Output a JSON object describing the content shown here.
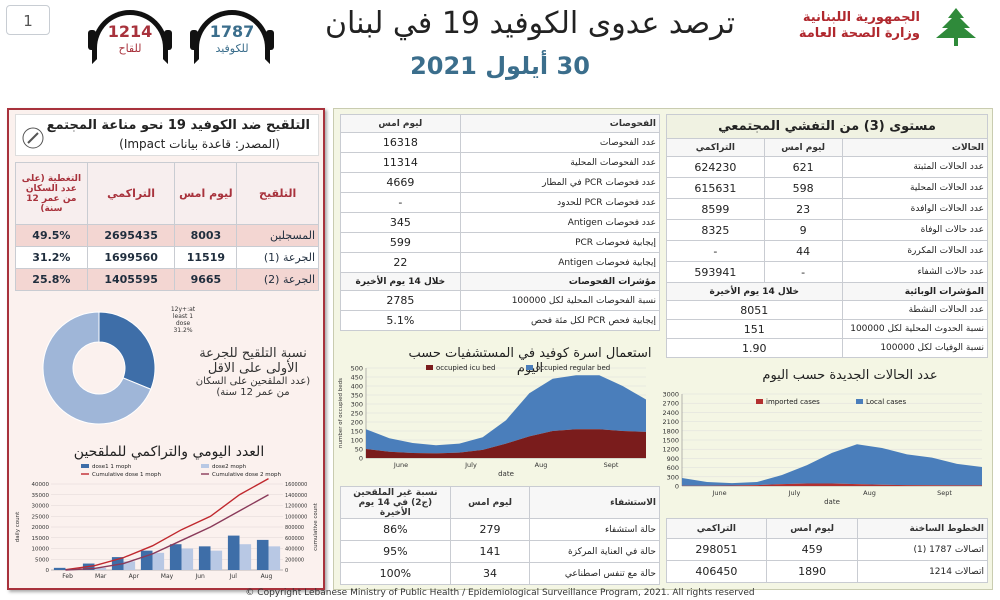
{
  "header": {
    "page_number": "1",
    "title": "ترصد عدوى الكوفيد 19 في لبنان",
    "date": "30 أيلول 2021",
    "ministry_line1": "الجمهورية اللبنانية",
    "ministry_line2": "وزارة الصحة العامة",
    "hotline_covid": {
      "number": "1787",
      "label": "للكوفيد"
    },
    "hotline_vaccine": {
      "number": "1214",
      "label": "للقاح"
    }
  },
  "vaccination": {
    "title": "التلقيح ضد الكوفيد 19 نحو مناعة المجتمع",
    "source": "(المصدر: قاعدة بيانات Impact)",
    "columns": [
      "التلقيح",
      "ليوم امس",
      "التراكمي",
      "التغطية (على عدد السكان من عمر 12 سنة)"
    ],
    "rows": [
      {
        "label": "المسجلين",
        "yesterday": "8003",
        "cumulative": "2695435",
        "coverage": "49.5%"
      },
      {
        "label": "الجرعة (1)",
        "yesterday": "11519",
        "cumulative": "1699560",
        "coverage": "31.2%"
      },
      {
        "label": "الجرعة (2)",
        "yesterday": "9665",
        "cumulative": "1405595",
        "coverage": "25.8%"
      }
    ],
    "donut_caption_line1": "نسبة التلقيح للجرعة",
    "donut_caption_line2": "الأولى على الاقل",
    "donut_caption_line3": "(عدد الملقحين على السكان",
    "donut_caption_line4": "من عمر 12 سنة)",
    "donut_label_line1": "12y+:at",
    "donut_label_line2": "least 1",
    "donut_label_line3": "dose",
    "donut_label_line4": "31.2%"
  },
  "community": {
    "title": "مستوى (3) من التفشي المجتمعي",
    "columns": [
      "الحالات",
      "ليوم امس",
      "التراكمي"
    ],
    "rows": [
      {
        "label": "عدد الحالات المثبتة",
        "yesterday": "621",
        "cumulative": "624230"
      },
      {
        "label": "عدد الحالات المحلية",
        "yesterday": "598",
        "cumulative": "615631"
      },
      {
        "label": "عدد الحالات الوافدة",
        "yesterday": "23",
        "cumulative": "8599"
      },
      {
        "label": "عدد حالات الوفاة",
        "yesterday": "9",
        "cumulative": "8325"
      },
      {
        "label": "عدد الحالات المكررة",
        "yesterday": "44",
        "cumulative": "-"
      },
      {
        "label": "عدد حالات الشفاء",
        "yesterday": "-",
        "cumulative": "593941"
      }
    ],
    "indicators_label": "المؤشرات الوبائية",
    "indicators_period": "خلال 14 يوم الأخيرة",
    "indicators": [
      {
        "label": "عدد الحالات النشطة",
        "value": "8051"
      },
      {
        "label": "نسبة الحدوث المحلية لكل 100000",
        "value": "151"
      },
      {
        "label": "نسبة الوفيات لكل 100000",
        "value": "1.90"
      }
    ]
  },
  "tests": {
    "columns": [
      "الفحوصات",
      "ليوم امس"
    ],
    "rows": [
      {
        "label": "عدد الفحوصات",
        "value": "16318"
      },
      {
        "label": "عدد الفحوصات المحلية",
        "value": "11314"
      },
      {
        "label": "عدد فحوصات PCR في المطار",
        "value": "4669"
      },
      {
        "label": "عدد فحوصات PCR للحدود",
        "value": "-"
      },
      {
        "label": "عدد فحوصات Antigen",
        "value": "345"
      },
      {
        "label": "إيجابية فحوصات PCR",
        "value": "599"
      },
      {
        "label": "إيجابية فحوصات Antigen",
        "value": "22"
      }
    ],
    "indicators_label": "مؤشرات الفحوصات",
    "indicators_period": "خلال 14 يوم الأخيرة",
    "indicators": [
      {
        "label": "نسبة الفحوصات المحلية لكل 100000",
        "value": "2785"
      },
      {
        "label": "إيجابية فحص PCR لكل مئة فحص",
        "value": "5.1%"
      }
    ]
  },
  "hospital": {
    "columns": [
      "الاستشفاء",
      "ليوم امس",
      "نسبة غير الملقحين (ج2) في 14 يوم الأخيرة"
    ],
    "rows": [
      {
        "label": "حالة استشفاء",
        "yesterday": "279",
        "unvaccinated": "86%"
      },
      {
        "label": "حالة في العناية المركزة",
        "yesterday": "141",
        "unvaccinated": "95%"
      },
      {
        "label": "حالة مع تنفس اصطناعي",
        "yesterday": "34",
        "unvaccinated": "100%"
      }
    ]
  },
  "hotlines": {
    "columns": [
      "الخطوط الساخنة",
      "ليوم امس",
      "التراكمي"
    ],
    "rows": [
      {
        "label": "اتصالات 1787 (1)",
        "yesterday": "459",
        "cumulative": "298051"
      },
      {
        "label": "اتصالات 1214",
        "yesterday": "1890",
        "cumulative": "406450"
      }
    ]
  },
  "copyright": "© Copyright Lebanese Ministry of Public Health / Epidemiological Surveillance Program, 2021. All rights reserved",
  "colors": {
    "primary_red": "#a8323c",
    "title_blue": "#3b6e8c",
    "bar_blue": "#4a7ebb",
    "bar_dark_red": "#7a1c1c",
    "line_red": "#c0282e"
  },
  "chart_data": [
    {
      "type": "pie",
      "categories": [
        "at least 1 dose",
        "not vaccinated"
      ],
      "values": [
        31.2,
        68.8
      ]
    },
    {
      "type": "bar",
      "title": "استعمال اسرة كوفيد في المستشفيات حسب اليوم",
      "ylabel": "number of occupied beds",
      "xlabel": "date",
      "ylim": [
        0,
        500
      ],
      "yticks": [
        0,
        50,
        100,
        150,
        200,
        250,
        300,
        350,
        400,
        450,
        500
      ],
      "month_labels": [
        "June",
        "July",
        "Aug",
        "Sept"
      ],
      "x": [
        0,
        10,
        20,
        30,
        40,
        50,
        60,
        70,
        80,
        90,
        100,
        110,
        120
      ],
      "series": [
        {
          "name": "occupied icu bed",
          "values": [
            50,
            35,
            28,
            26,
            30,
            45,
            80,
            120,
            150,
            160,
            160,
            150,
            145
          ]
        },
        {
          "name": "occupied regular bed",
          "values": [
            110,
            75,
            55,
            45,
            50,
            70,
            130,
            240,
            290,
            300,
            300,
            250,
            180
          ]
        }
      ]
    },
    {
      "type": "bar",
      "title": "عدد الحالات الجديدة حسب اليوم",
      "xlabel": "date",
      "ylim": [
        0,
        3000
      ],
      "yticks": [
        0,
        300,
        600,
        900,
        1200,
        1500,
        1800,
        2100,
        2400,
        2700,
        3000
      ],
      "month_labels": [
        "June",
        "July",
        "Aug",
        "Sept"
      ],
      "x": [
        0,
        10,
        20,
        30,
        40,
        50,
        60,
        70,
        80,
        90,
        100,
        110,
        120
      ],
      "series": [
        {
          "name": "imported cases",
          "values": [
            10,
            10,
            15,
            30,
            60,
            80,
            80,
            60,
            40,
            30,
            25,
            22,
            20
          ]
        },
        {
          "name": "Local cases",
          "values": [
            250,
            120,
            80,
            100,
            300,
            600,
            1000,
            1300,
            1200,
            1000,
            900,
            700,
            600
          ]
        }
      ]
    },
    {
      "type": "bar",
      "title": "العدد اليومي والتراكمي للملقحين",
      "ylabel": "daily count",
      "y2label": "cumulative count",
      "ylim": [
        0,
        40000
      ],
      "y2lim": [
        0,
        1600000
      ],
      "yticks": [
        0,
        5000,
        10000,
        15000,
        20000,
        25000,
        30000,
        35000,
        40000
      ],
      "y2ticks": [
        0,
        200000,
        400000,
        600000,
        800000,
        1000000,
        1200000,
        1400000,
        1600000
      ],
      "month_labels": [
        "Feb",
        "Mar",
        "Apr",
        "May",
        "Jun",
        "Jul",
        "Aug"
      ],
      "x": [
        0,
        1,
        2,
        3,
        4,
        5,
        6,
        7
      ],
      "series": [
        {
          "name": "dose1 1 moph",
          "values": [
            1000,
            3000,
            6000,
            9000,
            12000,
            11000,
            16000,
            14000
          ]
        },
        {
          "name": "dose2 moph",
          "values": [
            0,
            1000,
            4000,
            8000,
            10000,
            9000,
            12000,
            11000
          ]
        },
        {
          "name": "Cumulative dose 1 moph",
          "values": [
            5000,
            80000,
            230000,
            450000,
            750000,
            1000000,
            1400000,
            1700000
          ]
        },
        {
          "name": "Cumulative dose 2 moph",
          "values": [
            0,
            30000,
            120000,
            300000,
            550000,
            800000,
            1100000,
            1400000
          ]
        }
      ]
    }
  ]
}
